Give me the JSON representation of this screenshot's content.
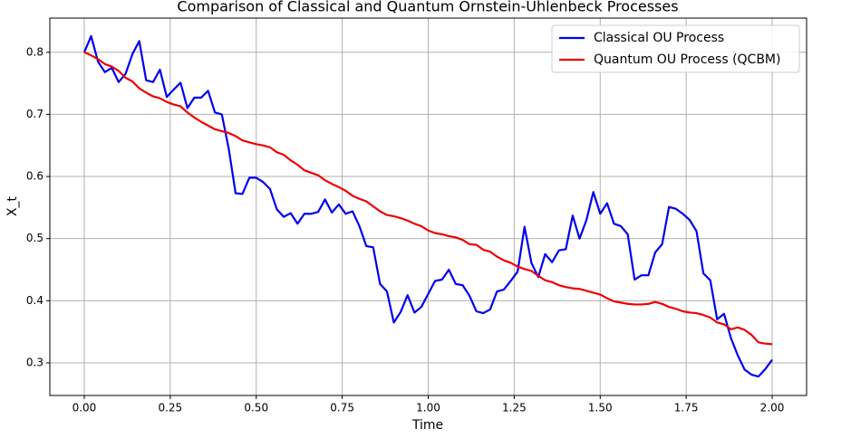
{
  "chart_data": {
    "type": "line",
    "title": "Comparison of Classical and Quantum Ornstein-Uhlenbeck Processes",
    "xlabel": "Time",
    "ylabel": "X_t",
    "x": [
      0,
      0.02,
      0.04,
      0.06,
      0.08,
      0.1,
      0.12,
      0.14,
      0.16,
      0.18,
      0.2,
      0.22,
      0.24,
      0.26,
      0.28,
      0.3,
      0.32,
      0.34,
      0.36,
      0.38,
      0.4,
      0.42,
      0.44,
      0.46,
      0.48,
      0.5,
      0.52,
      0.54,
      0.56,
      0.58,
      0.6,
      0.62,
      0.64,
      0.66,
      0.68,
      0.7,
      0.72,
      0.74,
      0.76,
      0.78,
      0.8,
      0.82,
      0.84,
      0.86,
      0.88,
      0.9,
      0.92,
      0.94,
      0.96,
      0.98,
      1,
      1.02,
      1.04,
      1.06,
      1.08,
      1.1,
      1.12,
      1.14,
      1.16,
      1.18,
      1.2,
      1.22,
      1.24,
      1.26,
      1.28,
      1.3,
      1.32,
      1.34,
      1.36,
      1.38,
      1.4,
      1.42,
      1.44,
      1.46,
      1.48,
      1.5,
      1.52,
      1.54,
      1.56,
      1.58,
      1.6,
      1.62,
      1.64,
      1.66,
      1.68,
      1.7,
      1.72,
      1.74,
      1.76,
      1.78,
      1.8,
      1.82,
      1.84,
      1.86,
      1.88,
      1.9,
      1.92,
      1.94,
      1.96,
      1.98,
      2
    ],
    "series": [
      {
        "name": "Classical OU Process",
        "color": "#0000ee",
        "values": [
          0.8,
          0.826,
          0.785,
          0.768,
          0.775,
          0.752,
          0.765,
          0.797,
          0.818,
          0.755,
          0.752,
          0.772,
          0.728,
          0.74,
          0.751,
          0.71,
          0.727,
          0.727,
          0.738,
          0.703,
          0.7,
          0.645,
          0.573,
          0.572,
          0.598,
          0.598,
          0.591,
          0.58,
          0.547,
          0.535,
          0.541,
          0.524,
          0.54,
          0.54,
          0.543,
          0.563,
          0.542,
          0.555,
          0.54,
          0.544,
          0.52,
          0.488,
          0.486,
          0.427,
          0.415,
          0.365,
          0.382,
          0.409,
          0.381,
          0.39,
          0.411,
          0.432,
          0.434,
          0.45,
          0.427,
          0.425,
          0.408,
          0.383,
          0.38,
          0.386,
          0.415,
          0.418,
          0.432,
          0.447,
          0.519,
          0.461,
          0.438,
          0.475,
          0.462,
          0.481,
          0.483,
          0.537,
          0.5,
          0.53,
          0.575,
          0.54,
          0.557,
          0.524,
          0.52,
          0.507,
          0.434,
          0.441,
          0.441,
          0.478,
          0.491,
          0.551,
          0.548,
          0.54,
          0.53,
          0.512,
          0.444,
          0.433,
          0.37,
          0.379,
          0.34,
          0.312,
          0.289,
          0.281,
          0.278,
          0.29,
          0.305
        ]
      },
      {
        "name": "Quantum OU Process (QCBM)",
        "color": "#ee0000",
        "values": [
          0.8,
          0.795,
          0.789,
          0.781,
          0.777,
          0.77,
          0.759,
          0.753,
          0.742,
          0.735,
          0.729,
          0.726,
          0.72,
          0.716,
          0.713,
          0.703,
          0.695,
          0.688,
          0.682,
          0.676,
          0.673,
          0.67,
          0.665,
          0.658,
          0.655,
          0.652,
          0.65,
          0.647,
          0.639,
          0.635,
          0.626,
          0.619,
          0.61,
          0.606,
          0.602,
          0.594,
          0.588,
          0.583,
          0.577,
          0.569,
          0.564,
          0.56,
          0.552,
          0.544,
          0.538,
          0.536,
          0.533,
          0.529,
          0.524,
          0.52,
          0.513,
          0.509,
          0.507,
          0.504,
          0.502,
          0.498,
          0.491,
          0.49,
          0.482,
          0.479,
          0.471,
          0.465,
          0.461,
          0.455,
          0.451,
          0.448,
          0.44,
          0.433,
          0.43,
          0.425,
          0.422,
          0.42,
          0.419,
          0.416,
          0.413,
          0.41,
          0.404,
          0.399,
          0.397,
          0.395,
          0.394,
          0.394,
          0.395,
          0.398,
          0.395,
          0.39,
          0.387,
          0.383,
          0.381,
          0.38,
          0.377,
          0.373,
          0.365,
          0.362,
          0.354,
          0.357,
          0.353,
          0.345,
          0.333,
          0.331,
          0.33
        ]
      }
    ],
    "xlim": [
      -0.1,
      2.1
    ],
    "ylim": [
      0.2475,
      0.855
    ],
    "xticks": [
      {
        "value": 0,
        "label": "0.00"
      },
      0.25,
      {
        "value": 0.5,
        "label": "0.50"
      },
      0.75,
      {
        "value": 1,
        "label": "1.00"
      },
      1.25,
      {
        "value": 1.5,
        "label": "1.50"
      },
      1.75,
      {
        "value": 2,
        "label": "2.00"
      }
    ],
    "yticks": [
      0.3,
      0.4,
      0.5,
      0.6,
      0.7,
      0.8
    ],
    "grid": true,
    "legend": "upper right"
  }
}
